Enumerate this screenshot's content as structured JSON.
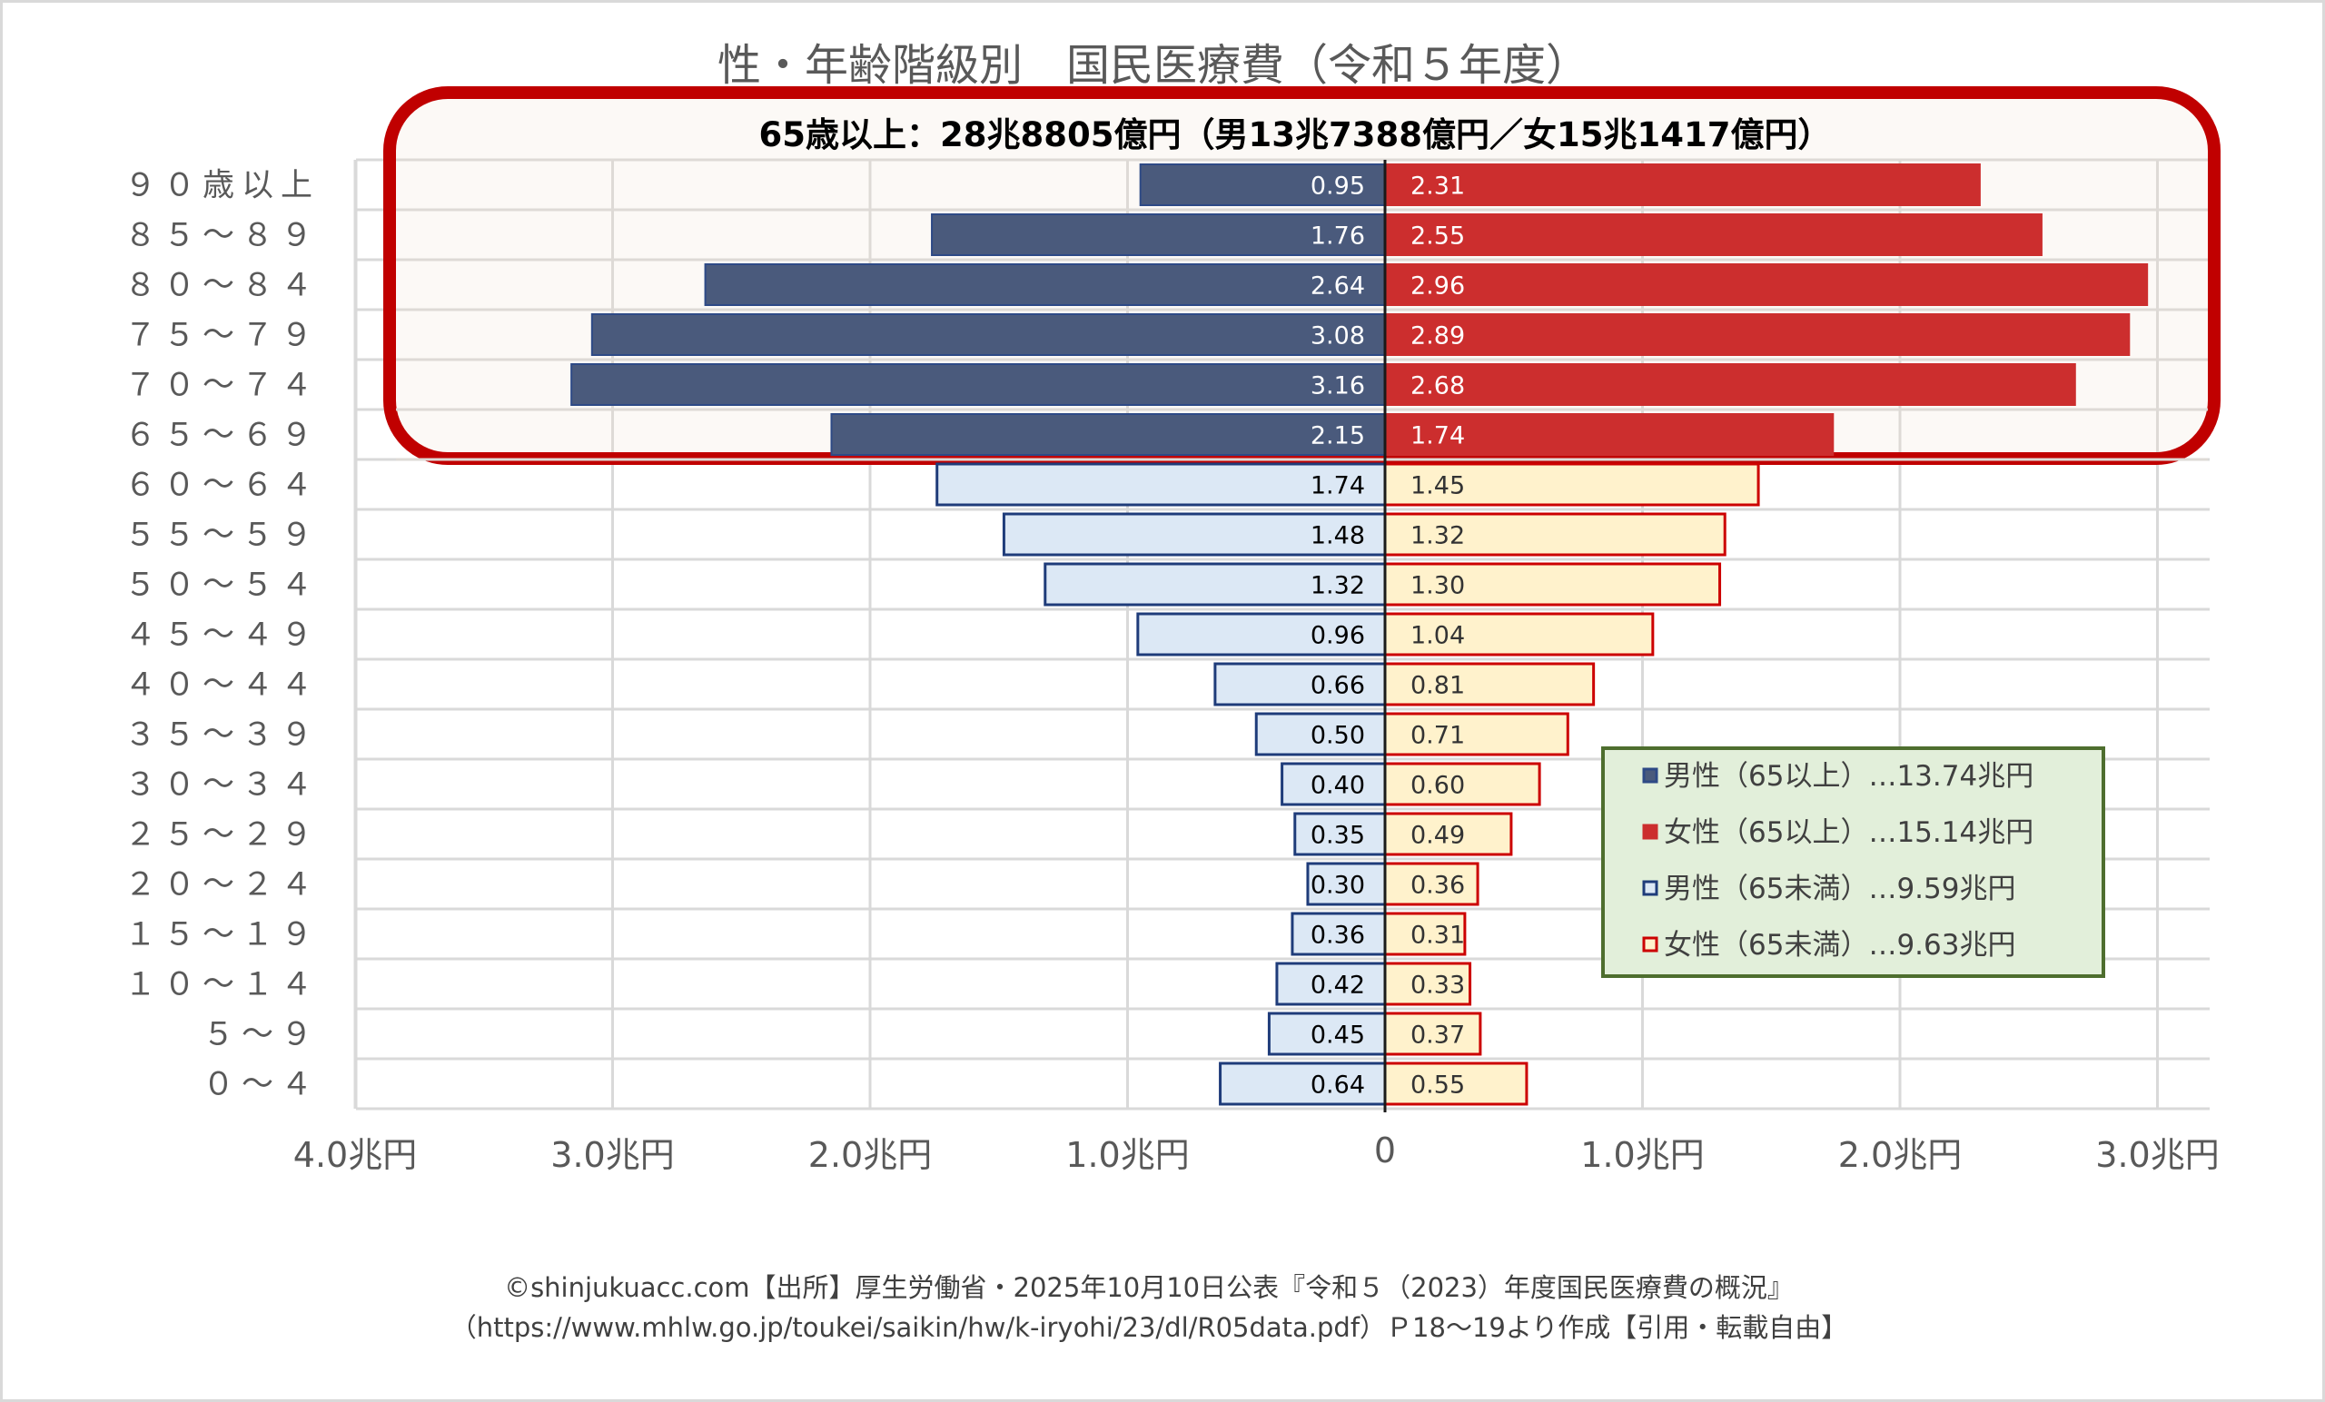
{
  "chart_data": {
    "type": "bar",
    "orientation": "horizontal",
    "subtype": "population-pyramid",
    "title": "性・年齢階級別　国民医療費（令和５年度）",
    "subtitle": "65歳以上：28兆8805億円（男13兆7388億円／女15兆1417億円）",
    "categories": [
      "９０歳以上",
      "８５～８９",
      "８０～８４",
      "７５～７９",
      "７０～７４",
      "６５～６９",
      "６０～６４",
      "５５～５９",
      "５０～５４",
      "４５～４９",
      "４０～４４",
      "３５～３９",
      "３０～３４",
      "２５～２９",
      "２０～２４",
      "１５～１９",
      "１０～１４",
      "５～９",
      "０～４"
    ],
    "series": [
      {
        "name": "男性",
        "side": "left",
        "values": [
          0.95,
          1.76,
          2.64,
          3.08,
          3.16,
          2.15,
          1.74,
          1.48,
          1.32,
          0.96,
          0.66,
          0.5,
          0.4,
          0.35,
          0.3,
          0.36,
          0.42,
          0.45,
          0.64
        ],
        "labels": [
          "0.95",
          "1.76",
          "2.64",
          "3.08",
          "3.16",
          "2.15",
          "1.74",
          "1.48",
          "1.32",
          "0.96",
          "0.66",
          "0.50",
          "0.40",
          "0.35",
          "0.30",
          "0.36",
          "0.42",
          "0.45",
          "0.64"
        ]
      },
      {
        "name": "女性",
        "side": "right",
        "values": [
          2.31,
          2.55,
          2.96,
          2.89,
          2.68,
          1.74,
          1.45,
          1.32,
          1.3,
          1.04,
          0.81,
          0.71,
          0.6,
          0.49,
          0.36,
          0.31,
          0.33,
          0.37,
          0.55
        ],
        "labels": [
          "2.31",
          "2.55",
          "2.96",
          "2.89",
          "2.68",
          "1.74",
          "1.45",
          "1.32",
          "1.30",
          "1.04",
          "0.81",
          "0.71",
          "0.60",
          "0.49",
          "0.36",
          "0.31",
          "0.33",
          "0.37",
          "0.55"
        ]
      }
    ],
    "highlight_rows_65_plus": 6,
    "xlim": [
      -4.0,
      3.2
    ],
    "x_ticks": [
      -4,
      -3,
      -2,
      -1,
      0,
      1,
      2,
      3
    ],
    "x_tick_labels": [
      "4.0兆円",
      "3.0兆円",
      "2.0兆円",
      "1.0兆円",
      "0",
      "1.0兆円",
      "2.0兆円",
      "3.0兆円"
    ],
    "grid": true,
    "colors": {
      "male_65plus_fill": "#4A5A7C",
      "male_65plus_border": "#2E4A86",
      "female_65plus_fill": "#CC2E2E",
      "male_under65_fill": "#DCE8F5",
      "male_under65_border": "#1F3C7A",
      "female_under65_fill": "#FFF2CC",
      "female_under65_border": "#CC0000",
      "highlight_frame": "#C00000",
      "legend_fill": "#E2EFDA",
      "legend_border": "#4E6E2E"
    },
    "legend": {
      "position": "right-middle",
      "items": [
        {
          "label": "男性（65以上）…13.74兆円",
          "swatch": "male_65plus"
        },
        {
          "label": "女性（65以上）…15.14兆円",
          "swatch": "female_65plus"
        },
        {
          "label": "男性（65未満）…9.59兆円",
          "swatch": "male_under65"
        },
        {
          "label": "女性（65未満）…9.63兆円",
          "swatch": "female_under65"
        }
      ]
    }
  },
  "footer": {
    "line1": "©shinjukuacc.com【出所】厚生労働省・2025年10月10日公表『令和５（2023）年度国民医療費の概況』",
    "line2": "（https://www.mhlw.go.jp/toukei/saikin/hw/k-iryohi/23/dl/R05data.pdf）Ｐ18～19より作成【引用・転載自由】"
  }
}
